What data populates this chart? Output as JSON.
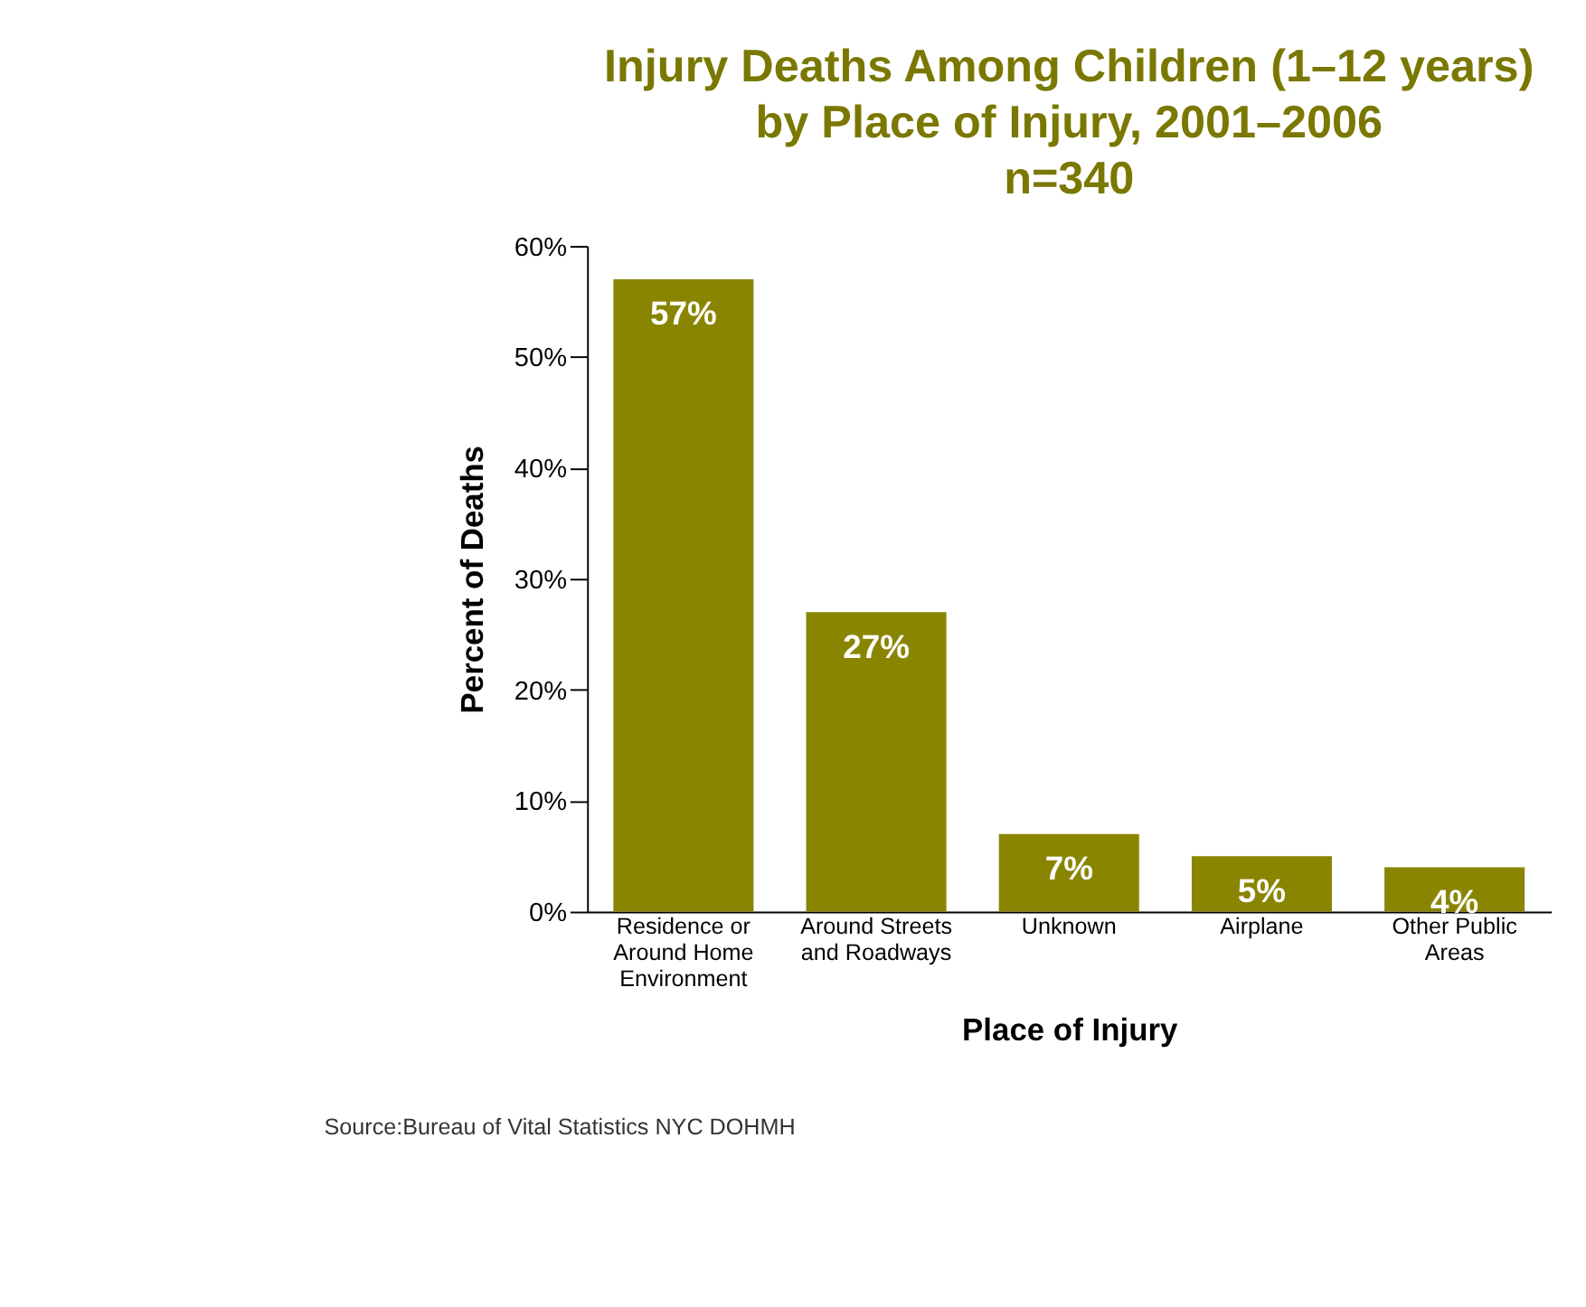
{
  "chart_data": {
    "type": "bar",
    "title": "Injury Deaths Among Children (1–12 years) by Place of Injury, 2001–2006",
    "subtitle": "n=340",
    "xlabel": "Place of Injury",
    "ylabel": "Percent of Deaths",
    "categories": [
      "Residence or Around Home Environment",
      "Around Streets and Roadways",
      "Unknown",
      "Airplane",
      "Other Public Areas"
    ],
    "values": [
      57,
      27,
      7,
      5,
      4
    ],
    "value_labels": [
      "57%",
      "27%",
      "7%",
      "5%",
      "4%"
    ],
    "color": "#8a8500",
    "grid": false,
    "ylim": [
      0,
      60
    ],
    "yticks": [
      {
        "value": 0,
        "label": "0%"
      },
      {
        "value": 10,
        "label": "10%"
      },
      {
        "value": 20,
        "label": "20%"
      },
      {
        "value": 30,
        "label": "30%"
      },
      {
        "value": 40,
        "label": "40%"
      },
      {
        "value": 50,
        "label": "50%"
      },
      {
        "value": 60,
        "label": "60%"
      }
    ],
    "annotations": [
      "Source:Bureau of Vital Statistics NYC DOHMH"
    ]
  }
}
